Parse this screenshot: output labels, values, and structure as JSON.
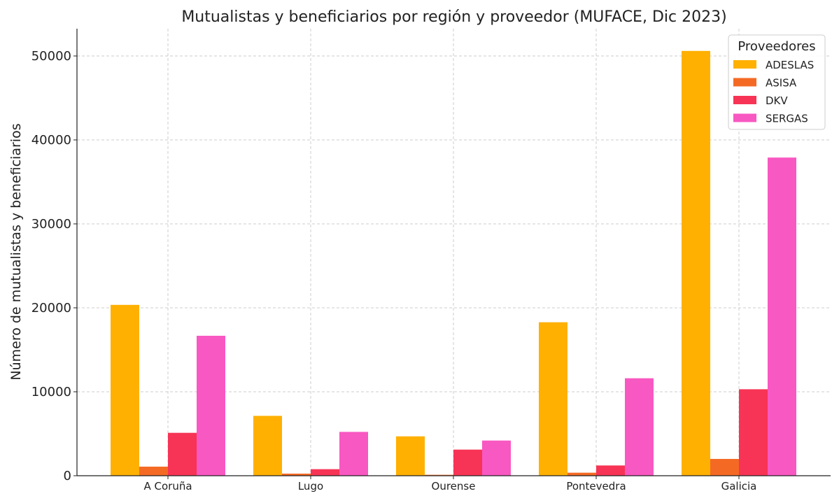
{
  "chart_data": {
    "type": "bar",
    "title": "Mutualistas y beneficiarios por región y proveedor (MUFACE, Dic 2023)",
    "xlabel": "",
    "ylabel": "Número de mutualistas y beneficiarios",
    "categories": [
      "A Coruña",
      "Lugo",
      "Ourense",
      "Pontevedra",
      "Galicia"
    ],
    "ylim": [
      0,
      53250
    ],
    "yticks": [
      0,
      10000,
      20000,
      30000,
      40000,
      50000
    ],
    "grid": true,
    "legend": {
      "title": "Proveedores",
      "placement": "top-right"
    },
    "series": [
      {
        "name": "ADESLAS",
        "color": "#FFB000",
        "values": [
          20350,
          7130,
          4690,
          18280,
          50600
        ]
      },
      {
        "name": "ASISA",
        "color": "#F46A25",
        "values": [
          1080,
          250,
          110,
          360,
          2000
        ]
      },
      {
        "name": "DKV",
        "color": "#F73455",
        "values": [
          5110,
          780,
          3110,
          1220,
          10300
        ]
      },
      {
        "name": "SERGAS",
        "color": "#F858C1",
        "values": [
          16670,
          5220,
          4190,
          11610,
          37900
        ]
      }
    ]
  }
}
